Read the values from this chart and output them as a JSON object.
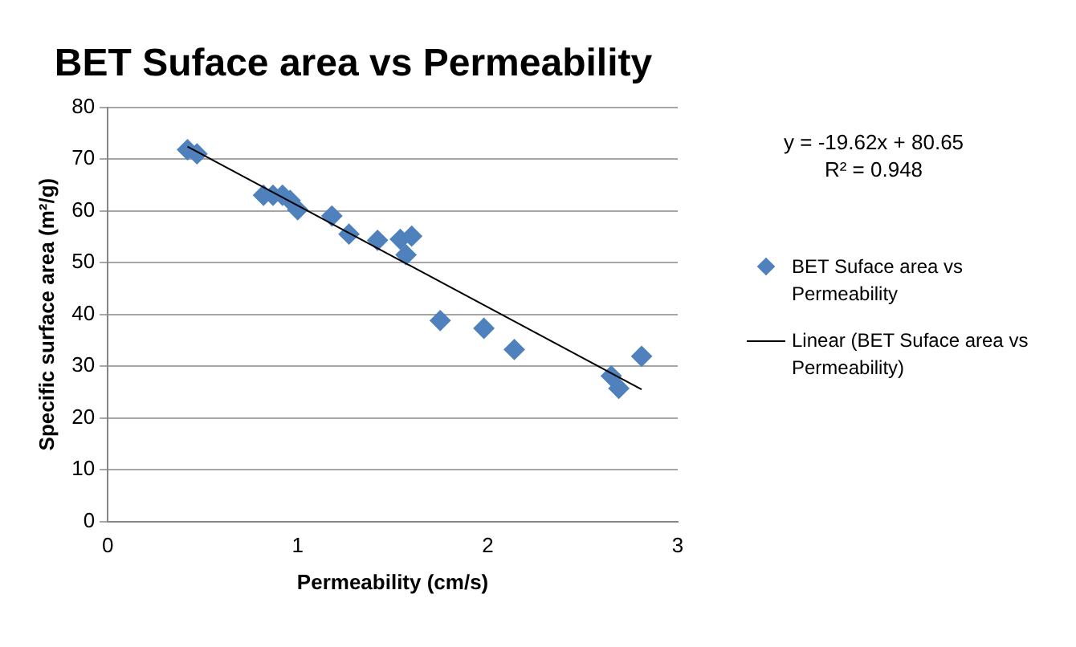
{
  "chart_data": {
    "type": "scatter",
    "title": "BET Suface area vs Permeability",
    "xlabel": "Permeability (cm/s)",
    "ylabel": "Specific surface area (m²/g)",
    "xlim": [
      0,
      3
    ],
    "xticks": [
      0,
      1,
      2,
      3
    ],
    "ylim": [
      0,
      80
    ],
    "yticks": [
      0,
      10,
      20,
      30,
      40,
      50,
      60,
      70,
      80
    ],
    "grid": "y",
    "legend": "right",
    "annotations": [
      "y = -19.62x + 80.65",
      "R² = 0.948"
    ],
    "series": [
      {
        "name": "BET Suface area vs Permeability",
        "marker": "diamond",
        "color": "#4f81bd",
        "x": [
          0.42,
          0.47,
          0.82,
          0.87,
          0.92,
          0.96,
          1.0,
          1.18,
          1.27,
          1.42,
          1.54,
          1.6,
          1.57,
          1.75,
          1.98,
          2.14,
          2.65,
          2.69,
          2.81
        ],
        "values": [
          71.8,
          71,
          63,
          63,
          63,
          62,
          60.2,
          59,
          55.5,
          54.3,
          54.5,
          55.1,
          51.5,
          38.8,
          37.3,
          33.2,
          28.1,
          25.7,
          31.9
        ]
      },
      {
        "name": "Linear (BET Suface area vs Permeability)",
        "type": "line",
        "marker": "none",
        "color": "#000000",
        "x": [
          0.42,
          2.81
        ],
        "values": [
          72.4,
          25.5
        ]
      }
    ]
  }
}
